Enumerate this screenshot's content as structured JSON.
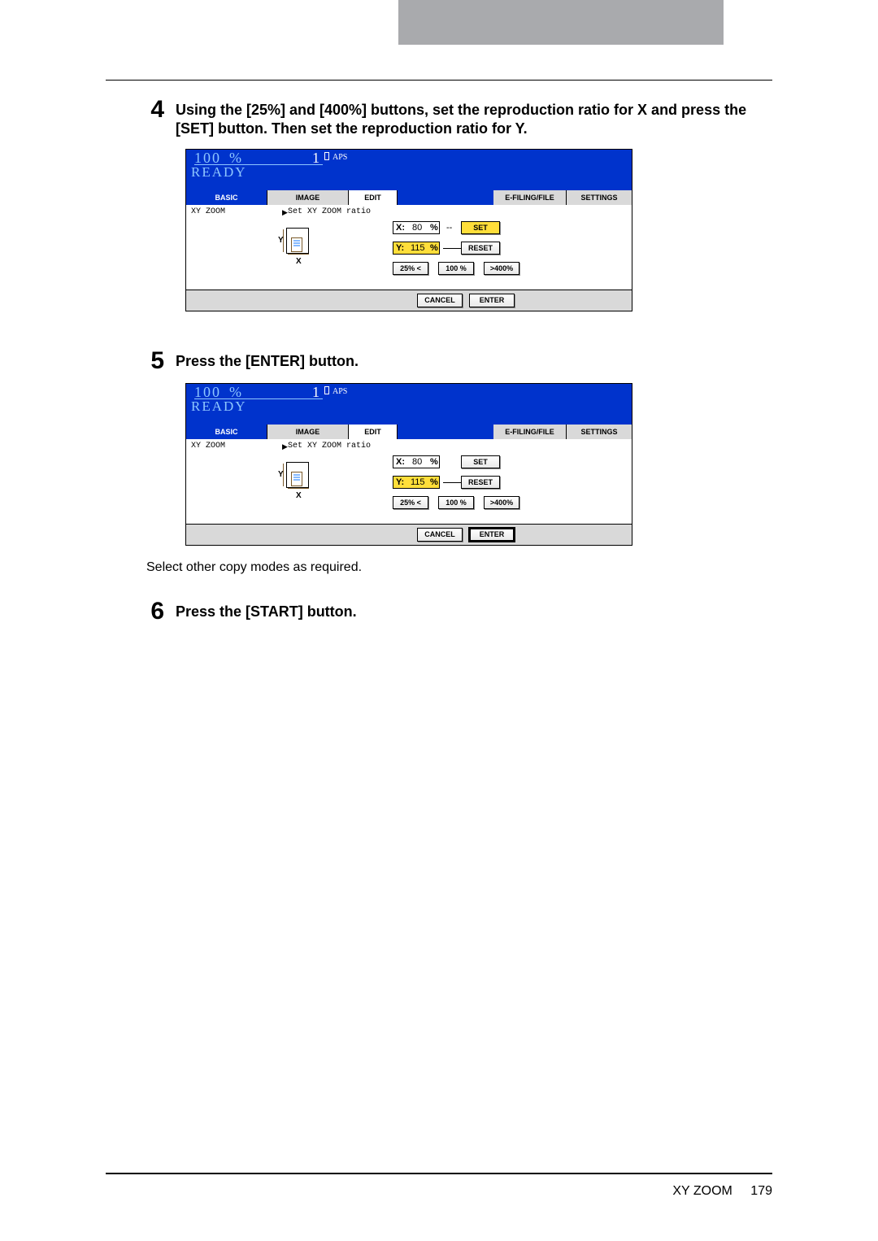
{
  "colors": {
    "top_grey": "#a9aaad",
    "rule": "#000000",
    "screen_blue": "#0033cc",
    "screen_lightblue_text": "#8ec6ff",
    "tab_grey": "#d9d9d9",
    "highlight_yellow": "#ffde3a"
  },
  "steps": [
    {
      "num": "4",
      "text": "Using the [25%] and [400%] buttons, set the reproduction ratio for X and press the [SET] button. Then set the reproduction ratio for Y.",
      "screenshot": {
        "header": {
          "percent_value": "100",
          "percent_sign": "%",
          "count": "1",
          "mode": "APS",
          "status": "READY"
        },
        "tabs": [
          "BASIC",
          "IMAGE",
          "EDIT",
          "E-FILING/FILE",
          "SETTINGS"
        ],
        "body": {
          "mode_label": "XY ZOOM",
          "instruction": "Set XY ZOOM ratio",
          "x_label": "X:",
          "x_value": "80",
          "x_unit": "%",
          "y_label": "Y:",
          "y_value": "115",
          "y_unit": "%",
          "set_btn": "SET",
          "reset_btn": "RESET",
          "pct25": "25% <",
          "pct100": "100 %",
          "pct400": ">400%",
          "set_highlight": true,
          "reset_highlight": false,
          "enter_highlight": false
        },
        "footer": {
          "cancel": "CANCEL",
          "enter": "ENTER"
        }
      }
    },
    {
      "num": "5",
      "text": "Press the [ENTER] button.",
      "screenshot": {
        "header": {
          "percent_value": "100",
          "percent_sign": "%",
          "count": "1",
          "mode": "APS",
          "status": "READY"
        },
        "tabs": [
          "BASIC",
          "IMAGE",
          "EDIT",
          "E-FILING/FILE",
          "SETTINGS"
        ],
        "body": {
          "mode_label": "XY ZOOM",
          "instruction": "Set XY ZOOM ratio",
          "x_label": "X:",
          "x_value": "80",
          "x_unit": "%",
          "y_label": "Y:",
          "y_value": "115",
          "y_unit": "%",
          "set_btn": "SET",
          "reset_btn": "RESET",
          "pct25": "25% <",
          "pct100": "100 %",
          "pct400": ">400%",
          "set_highlight": false,
          "reset_highlight": false,
          "enter_highlight": true
        },
        "footer": {
          "cancel": "CANCEL",
          "enter": "ENTER"
        }
      },
      "after_text": "Select other copy modes as required."
    },
    {
      "num": "6",
      "text": "Press the [START] button."
    }
  ],
  "page_footer": {
    "section": "XY ZOOM",
    "page": "179"
  }
}
